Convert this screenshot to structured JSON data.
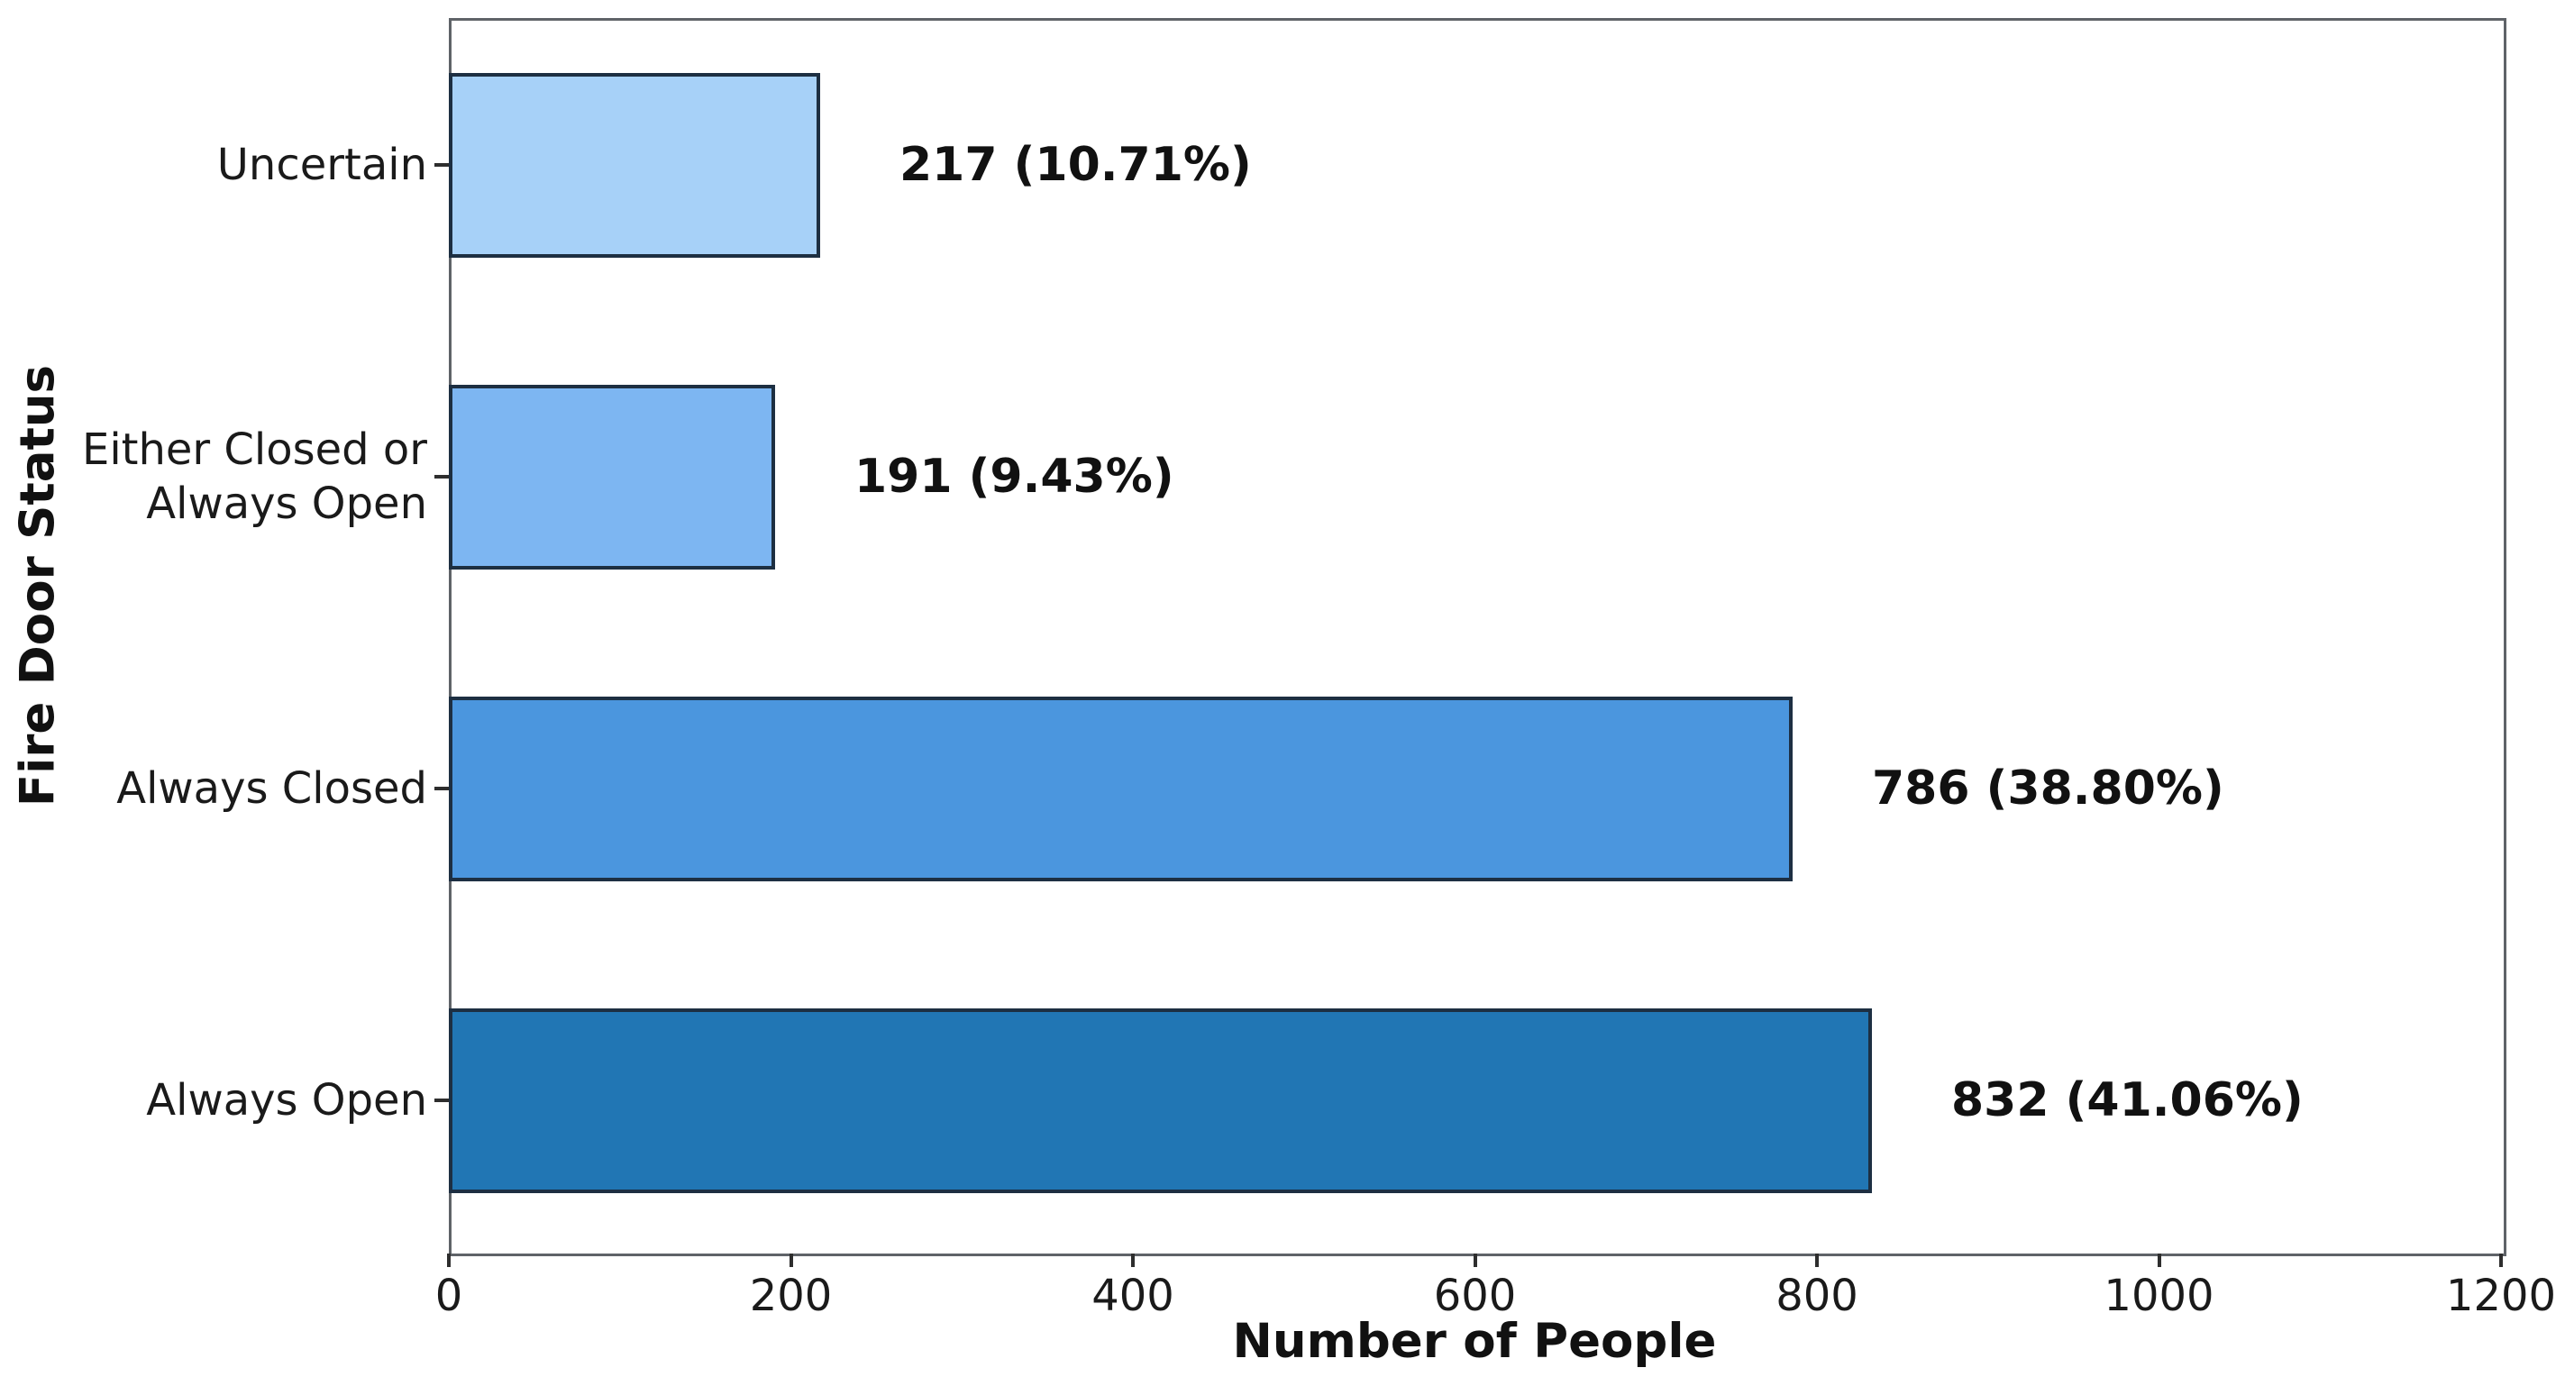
{
  "chart_data": {
    "type": "bar",
    "orientation": "horizontal",
    "categories": [
      "Uncertain",
      "Either Closed or\nAlways Open",
      "Always Closed",
      "Always Open"
    ],
    "values": [
      217,
      191,
      786,
      832
    ],
    "percentages": [
      10.71,
      9.43,
      38.8,
      41.06
    ],
    "value_labels": [
      "217 (10.71%)",
      "191 (9.43%)",
      "786 (38.80%)",
      "832 (41.06%)"
    ],
    "bar_colors": [
      "#a7d1f8",
      "#7db6f2",
      "#4b96de",
      "#2176b4"
    ],
    "bar_edge_color": "#1d2f42",
    "xlabel": "Number of People",
    "ylabel": "Fire Door Status",
    "xlim": [
      0,
      1200
    ],
    "xticks": [
      0,
      200,
      400,
      600,
      800,
      1000,
      1200
    ],
    "xtick_labels": [
      "0",
      "200",
      "400",
      "600",
      "800",
      "1000",
      "1200"
    ],
    "grid": false,
    "legend": null,
    "title": ""
  }
}
